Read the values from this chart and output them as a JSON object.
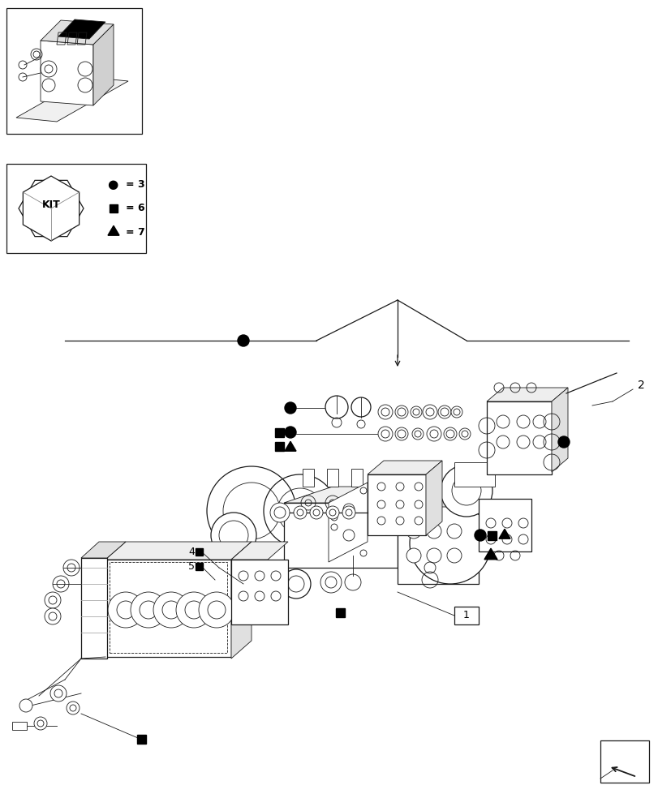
{
  "bg_color": "#ffffff",
  "line_color": "#1a1a1a",
  "fig_width": 8.12,
  "fig_height": 10.0,
  "dpi": 100,
  "lw_thin": 0.6,
  "lw_med": 0.9,
  "lw_thick": 1.3
}
